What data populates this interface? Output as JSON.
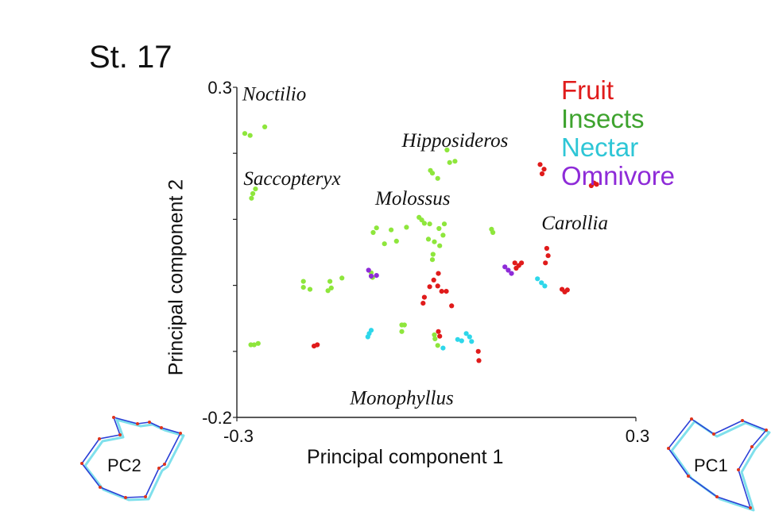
{
  "title": "St. 17",
  "legend": [
    {
      "label": "Fruit",
      "color": "#e01b1b"
    },
    {
      "label": "Insects",
      "color": "#3ea32e"
    },
    {
      "label": "Nectar",
      "color": "#2ec6d6"
    },
    {
      "label": "Omnivore",
      "color": "#8e2bd8"
    }
  ],
  "inset_labels": {
    "left": "PC2",
    "right": "PC1"
  },
  "chart_data": {
    "type": "scatter",
    "xlabel": "Principal component 1",
    "ylabel": "Principal component 2",
    "xlim": [
      -0.3,
      0.3
    ],
    "ylim": [
      -0.2,
      0.3
    ],
    "xticks": [
      {
        "value": -0.3,
        "label": "-0.3"
      },
      {
        "value": 0.3,
        "label": "0.3"
      }
    ],
    "yticks": [
      {
        "value": 0.3,
        "label": "0.3"
      },
      {
        "value": -0.2,
        "label": "-0.2"
      }
    ],
    "grid": false,
    "legend_position": "top-right",
    "point_colors": {
      "Fruit": "#e01b1b",
      "Insects": "#8ee63c",
      "Nectar": "#2ed7ea",
      "Omnivore": "#8e2bd8"
    },
    "annotations": [
      {
        "text": "Noctilio",
        "x": -0.292,
        "y": 0.28
      },
      {
        "text": "Hipposideros",
        "x": -0.052,
        "y": 0.21
      },
      {
        "text": "Saccopteryx",
        "x": -0.29,
        "y": 0.152
      },
      {
        "text": "Molossus",
        "x": -0.092,
        "y": 0.122
      },
      {
        "text": "Carollia",
        "x": 0.158,
        "y": 0.085
      },
      {
        "text": "Monophyllus",
        "x": -0.13,
        "y": -0.18
      }
    ],
    "series": [
      {
        "name": "Fruit",
        "points": [
          [
            0.156,
            0.183
          ],
          [
            0.162,
            0.176
          ],
          [
            0.159,
            0.169
          ],
          [
            0.233,
            0.151
          ],
          [
            0.241,
            0.153
          ],
          [
            0.237,
            0.155
          ],
          [
            0.166,
            0.056
          ],
          [
            0.168,
            0.045
          ],
          [
            0.164,
            0.034
          ],
          [
            0.197,
            -0.007
          ],
          [
            0.193,
            -0.01
          ],
          [
            0.189,
            -0.006
          ],
          [
            0.118,
            0.034
          ],
          [
            0.124,
            0.03
          ],
          [
            0.128,
            0.034
          ],
          [
            0.12,
            0.026
          ],
          [
            0.003,
            0.018
          ],
          [
            -0.004,
            0.008
          ],
          [
            0.002,
            -0.001
          ],
          [
            -0.01,
            -0.002
          ],
          [
            0.008,
            -0.009
          ],
          [
            0.015,
            -0.009
          ],
          [
            -0.018,
            -0.018
          ],
          [
            -0.02,
            -0.027
          ],
          [
            0.023,
            -0.031
          ],
          [
            0.003,
            -0.07
          ],
          [
            0.005,
            -0.077
          ],
          [
            -0.184,
            -0.092
          ],
          [
            -0.179,
            -0.09
          ],
          [
            0.063,
            -0.1
          ],
          [
            0.064,
            -0.114
          ]
        ]
      },
      {
        "name": "Insects",
        "points": [
          [
            -0.288,
            0.23
          ],
          [
            -0.28,
            0.227
          ],
          [
            -0.258,
            0.24
          ],
          [
            0.016,
            0.205
          ],
          [
            0.02,
            0.186
          ],
          [
            0.028,
            0.188
          ],
          [
            -0.272,
            0.146
          ],
          [
            -0.276,
            0.139
          ],
          [
            -0.278,
            0.132
          ],
          [
            -0.009,
            0.174
          ],
          [
            -0.006,
            0.17
          ],
          [
            0.002,
            0.162
          ],
          [
            -0.026,
            0.103
          ],
          [
            -0.022,
            0.099
          ],
          [
            -0.018,
            0.094
          ],
          [
            -0.01,
            0.093
          ],
          [
            0.004,
            0.086
          ],
          [
            0.012,
            0.093
          ],
          [
            -0.068,
            0.084
          ],
          [
            -0.09,
            0.087
          ],
          [
            -0.095,
            0.08
          ],
          [
            -0.045,
            0.088
          ],
          [
            -0.06,
            0.067
          ],
          [
            -0.078,
            0.063
          ],
          [
            -0.012,
            0.07
          ],
          [
            -0.003,
            0.066
          ],
          [
            0.01,
            0.076
          ],
          [
            0.005,
            0.06
          ],
          [
            -0.005,
            0.047
          ],
          [
            -0.006,
            0.039
          ],
          [
            0.083,
            0.085
          ],
          [
            0.085,
            0.08
          ],
          [
            -0.2,
            0.006
          ],
          [
            -0.2,
            -0.003
          ],
          [
            -0.19,
            -0.006
          ],
          [
            -0.16,
            0.006
          ],
          [
            -0.158,
            -0.004
          ],
          [
            -0.163,
            -0.008
          ],
          [
            -0.142,
            0.011
          ],
          [
            -0.096,
            0.012
          ],
          [
            -0.098,
            0.019
          ],
          [
            -0.048,
            -0.06
          ],
          [
            -0.052,
            -0.06
          ],
          [
            -0.052,
            -0.07
          ],
          [
            -0.274,
            -0.09
          ],
          [
            -0.268,
            -0.088
          ],
          [
            -0.279,
            -0.09
          ],
          [
            -0.003,
            -0.075
          ],
          [
            -0.002,
            -0.081
          ],
          [
            0.002,
            -0.091
          ]
        ]
      },
      {
        "name": "Nectar",
        "points": [
          [
            0.152,
            0.01
          ],
          [
            0.158,
            0.004
          ],
          [
            0.163,
            -0.001
          ],
          [
            0.045,
            -0.073
          ],
          [
            0.05,
            -0.078
          ],
          [
            0.053,
            -0.085
          ],
          [
            0.032,
            -0.082
          ],
          [
            0.038,
            -0.084
          ],
          [
            0.01,
            -0.095
          ],
          [
            -0.098,
            -0.068
          ],
          [
            -0.101,
            -0.073
          ],
          [
            -0.103,
            -0.078
          ]
        ]
      },
      {
        "name": "Omnivore",
        "points": [
          [
            0.103,
            0.028
          ],
          [
            0.108,
            0.023
          ],
          [
            0.113,
            0.018
          ],
          [
            -0.102,
            0.023
          ],
          [
            -0.098,
            0.014
          ],
          [
            -0.09,
            0.015
          ]
        ]
      }
    ]
  }
}
